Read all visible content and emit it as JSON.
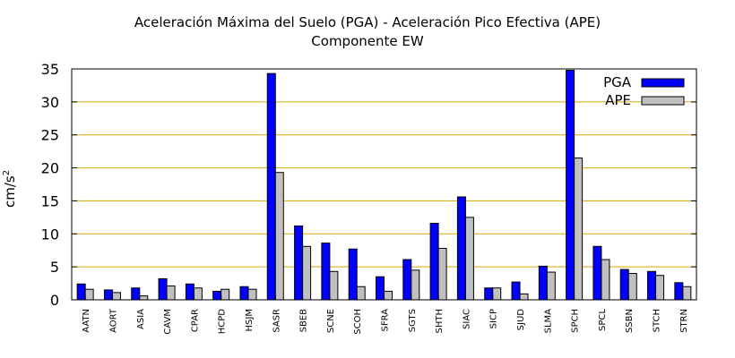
{
  "chart_data": {
    "type": "bar",
    "title": "Aceleración Máxima del Suelo (PGA) -  Aceleración Pico Efectiva (APE)",
    "subtitle": "Componente EW",
    "xlabel": "",
    "ylabel_base": "cm/s",
    "ylabel_exp": "2",
    "ylim": [
      0,
      35
    ],
    "yticks": [
      0,
      5,
      10,
      15,
      20,
      25,
      30,
      35
    ],
    "grid": true,
    "legend_position": "top-right",
    "categories": [
      "AATN",
      "AORT",
      "ASIA",
      "CAVM",
      "CPAR",
      "HCPD",
      "HSJM",
      "SASR",
      "SBEB",
      "SCNE",
      "SCOH",
      "SFRA",
      "SGTS",
      "SHTH",
      "SIAC",
      "SICP",
      "SJUD",
      "SLMA",
      "SPCH",
      "SPCL",
      "SSBN",
      "STCH",
      "STRN"
    ],
    "series": [
      {
        "name": "PGA",
        "color": "#0000ff",
        "values": [
          2.4,
          1.5,
          1.8,
          3.2,
          2.4,
          1.3,
          2.0,
          34.3,
          11.2,
          8.6,
          7.7,
          3.5,
          6.1,
          11.6,
          15.6,
          1.8,
          2.7,
          5.1,
          34.8,
          8.1,
          4.6,
          4.3,
          2.6
        ]
      },
      {
        "name": "APE",
        "color": "#c0c0c0",
        "values": [
          1.6,
          1.1,
          0.6,
          2.1,
          1.8,
          1.6,
          1.6,
          19.3,
          8.1,
          4.3,
          2.0,
          1.3,
          4.5,
          7.8,
          12.5,
          1.8,
          0.9,
          4.2,
          21.5,
          6.1,
          4.0,
          3.7,
          2.0
        ]
      }
    ]
  }
}
